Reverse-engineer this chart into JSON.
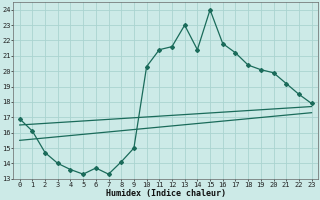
{
  "title": "",
  "xlabel": "Humidex (Indice chaleur)",
  "bg_color": "#cceae7",
  "grid_color": "#aad4d0",
  "line_color": "#1a6b5a",
  "xlim": [
    -0.5,
    23.5
  ],
  "ylim": [
    13,
    24.5
  ],
  "yticks": [
    13,
    14,
    15,
    16,
    17,
    18,
    19,
    20,
    21,
    22,
    23,
    24
  ],
  "xticks": [
    0,
    1,
    2,
    3,
    4,
    5,
    6,
    7,
    8,
    9,
    10,
    11,
    12,
    13,
    14,
    15,
    16,
    17,
    18,
    19,
    20,
    21,
    22,
    23
  ],
  "line1_x": [
    0,
    1,
    2,
    3,
    4,
    5,
    6,
    7,
    8,
    9,
    10,
    11,
    12,
    13,
    14,
    15,
    16,
    17,
    18,
    19,
    20,
    21,
    22,
    23
  ],
  "line1_y": [
    16.9,
    16.1,
    14.7,
    14.0,
    13.6,
    13.3,
    13.7,
    13.3,
    14.1,
    15.0,
    20.3,
    21.4,
    21.6,
    23.0,
    21.4,
    24.0,
    21.8,
    21.2,
    20.4,
    20.1,
    19.9,
    19.2,
    18.5,
    17.9
  ],
  "line2_x": [
    0,
    23
  ],
  "line2_y": [
    16.5,
    17.7
  ],
  "line3_x": [
    0,
    23
  ],
  "line3_y": [
    15.5,
    17.3
  ],
  "xlabel_fontsize": 6.0,
  "tick_fontsize": 5.0
}
